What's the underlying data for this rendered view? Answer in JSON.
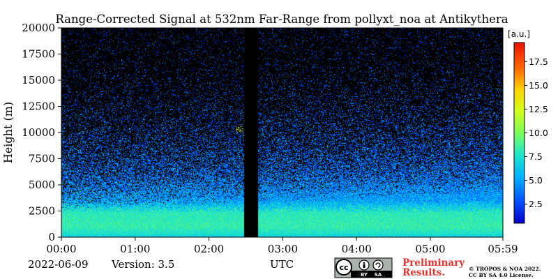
{
  "chart_data": {
    "type": "heatmap",
    "title": "Range-Corrected Signal at 532nm Far-Range from pollyxt_noa at Antikythera",
    "xlabel": "UTC",
    "ylabel": "Height (m)",
    "x_ticks": [
      "00:00",
      "01:00",
      "02:00",
      "03:00",
      "04:00",
      "05:00",
      "05:59"
    ],
    "x_tick_hours": [
      0,
      1,
      2,
      3,
      4,
      5,
      5.983
    ],
    "xlim_hours": [
      0,
      5.983
    ],
    "y_ticks": [
      0,
      2500,
      5000,
      7500,
      10000,
      12500,
      15000,
      17500,
      20000
    ],
    "ylim": [
      0,
      20000
    ],
    "colorbar": {
      "unit": "[a.u.]",
      "ticks": [
        2.5,
        5.0,
        7.5,
        10.0,
        12.5,
        15.0,
        17.5
      ],
      "range": [
        0.5,
        19.5
      ],
      "colormap": "jet"
    },
    "no_data_intervals_hours": [
      [
        2.48,
        2.67
      ]
    ],
    "profile": [
      {
        "height": 0,
        "signal": 6.5
      },
      {
        "height": 300,
        "signal": 7.5
      },
      {
        "height": 1000,
        "signal": 8.3
      },
      {
        "height": 2300,
        "signal": 8.0
      },
      {
        "height": 3500,
        "signal": 5.0
      },
      {
        "height": 6000,
        "signal": 4.0
      },
      {
        "height": 10000,
        "signal": 3.5
      },
      {
        "height": 15000,
        "signal": 3.0
      },
      {
        "height": 20000,
        "signal": 2.5
      }
    ],
    "feature": {
      "hour": 2.42,
      "height": 10300,
      "signal": 12.0
    }
  },
  "footer": {
    "date": "2022-06-09",
    "version": "Version: 3.5",
    "utc_label": "UTC",
    "preliminary_line1": "Preliminary",
    "preliminary_line2": "Results.",
    "copyright_line1": "© TROPOS & NOA 2022.",
    "copyright_line2": "CC BY SA 4.0 License."
  },
  "license_badge": {
    "cc": "cc",
    "by": "BY",
    "sa": "SA"
  },
  "colors": {
    "no_data": "#000000",
    "background": "#ffffff"
  }
}
